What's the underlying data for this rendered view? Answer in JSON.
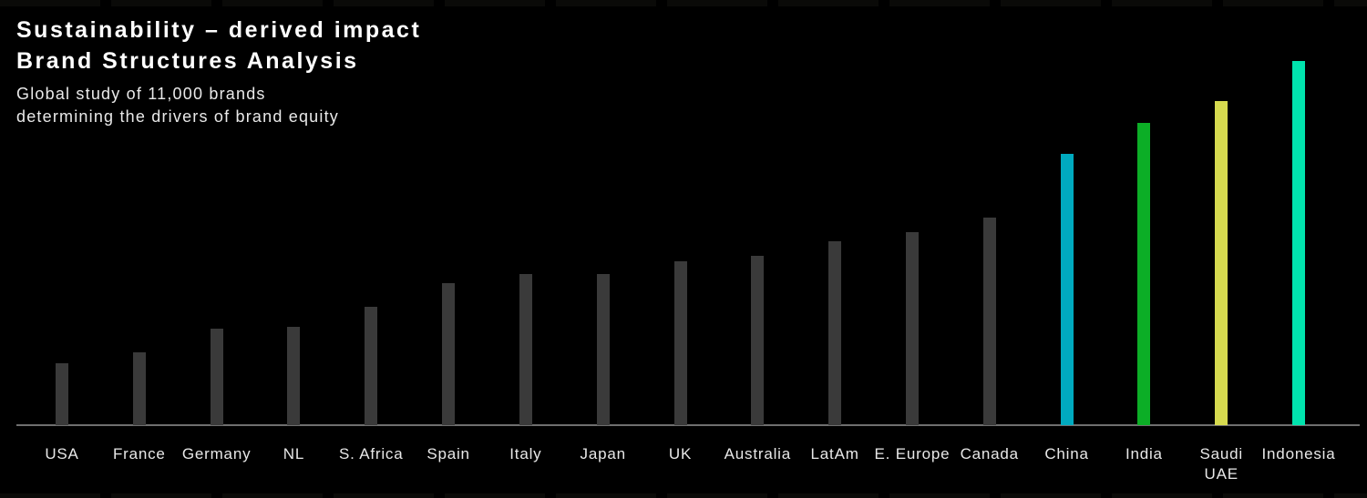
{
  "header": {
    "title_line1": "Sustainability – derived impact",
    "title_line2": "Brand Structures Analysis",
    "subtitle_line1": "Global study of 11,000 brands",
    "subtitle_line2": "determining the drivers of brand equity"
  },
  "chart_data": {
    "type": "bar",
    "title": "Sustainability – derived impact Brand Structures Analysis",
    "subtitle": "Global study of 11,000 brands determining the drivers of brand equity",
    "categories": [
      "USA",
      "France",
      "Germany",
      "NL",
      "S. Africa",
      "Spain",
      "Italy",
      "Japan",
      "UK",
      "Australia",
      "LatAm",
      "E. Europe",
      "Canada",
      "China",
      "India",
      "Saudi UAE",
      "Indonesia"
    ],
    "values": [
      17,
      20,
      26.5,
      27,
      32.5,
      39,
      41.5,
      41.5,
      45,
      46.5,
      50.5,
      53,
      57,
      74.5,
      83,
      89,
      100
    ],
    "bars": [
      {
        "label_lines": [
          "USA"
        ],
        "value": 17,
        "color": "#3A3A3A"
      },
      {
        "label_lines": [
          "France"
        ],
        "value": 20,
        "color": "#3A3A3A"
      },
      {
        "label_lines": [
          "Germany"
        ],
        "value": 26.5,
        "color": "#3A3A3A"
      },
      {
        "label_lines": [
          "NL"
        ],
        "value": 27,
        "color": "#3A3A3A"
      },
      {
        "label_lines": [
          "S. Africa"
        ],
        "value": 32.5,
        "color": "#3A3A3A"
      },
      {
        "label_lines": [
          "Spain"
        ],
        "value": 39,
        "color": "#3A3A3A"
      },
      {
        "label_lines": [
          "Italy"
        ],
        "value": 41.5,
        "color": "#3A3A3A"
      },
      {
        "label_lines": [
          "Japan"
        ],
        "value": 41.5,
        "color": "#3A3A3A"
      },
      {
        "label_lines": [
          "UK"
        ],
        "value": 45,
        "color": "#3A3A3A"
      },
      {
        "label_lines": [
          "Australia"
        ],
        "value": 46.5,
        "color": "#3A3A3A"
      },
      {
        "label_lines": [
          "LatAm"
        ],
        "value": 50.5,
        "color": "#3A3A3A"
      },
      {
        "label_lines": [
          "E. Europe"
        ],
        "value": 53,
        "color": "#3A3A3A"
      },
      {
        "label_lines": [
          "Canada"
        ],
        "value": 57,
        "color": "#3A3A3A"
      },
      {
        "label_lines": [
          "China"
        ],
        "value": 74.5,
        "color": "#00AABF"
      },
      {
        "label_lines": [
          "India"
        ],
        "value": 83,
        "color": "#0CAE26"
      },
      {
        "label_lines": [
          "Saudi",
          "UAE"
        ],
        "value": 89,
        "color": "#D6DA4F"
      },
      {
        "label_lines": [
          "Indonesia"
        ],
        "value": 100,
        "color": "#00E4AE"
      }
    ],
    "default_bar_color": "#3A3A3A",
    "highlight_colors": {
      "China": "#00AABF",
      "India": "#0CAE26",
      "Saudi UAE": "#D6DA4F",
      "Indonesia": "#00E4AE"
    },
    "axis_line_color": "#6F6F6F",
    "background_color": "#000000",
    "text_color": "#E8E8E8",
    "xlabel": "",
    "ylabel": "",
    "ylim": [
      0,
      100
    ],
    "grid": false,
    "legend": false,
    "value_labels_shown": false
  }
}
